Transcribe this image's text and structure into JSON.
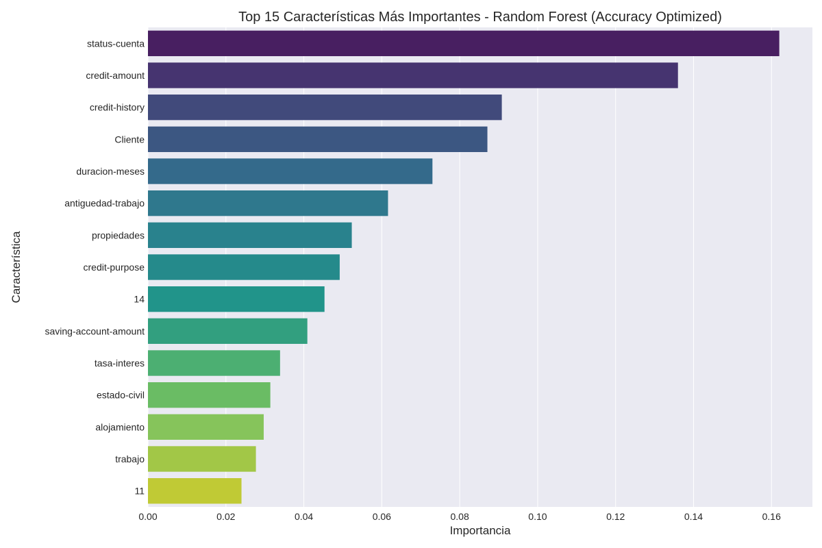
{
  "chart_data": {
    "type": "bar",
    "orientation": "horizontal",
    "title": "Top 15 Características Más Importantes - Random Forest (Accuracy Optimized)",
    "xlabel": "Importancia",
    "ylabel": "Característica",
    "categories": [
      "status-cuenta",
      "credit-amount",
      "credit-history",
      "Cliente",
      "duracion-meses",
      "antiguedad-trabajo",
      "propiedades",
      "credit-purpose",
      "14",
      "saving-account-amount",
      "tasa-interes",
      "estado-civil",
      "alojamiento",
      "trabajo",
      "11"
    ],
    "values": [
      0.162,
      0.136,
      0.0908,
      0.0871,
      0.073,
      0.0616,
      0.0523,
      0.0492,
      0.0453,
      0.0409,
      0.0339,
      0.0314,
      0.0297,
      0.0277,
      0.024
    ],
    "xlim": [
      0,
      0.1705
    ],
    "xticks": [
      "0.00",
      "0.02",
      "0.04",
      "0.06",
      "0.08",
      "0.10",
      "0.12",
      "0.14",
      "0.16"
    ],
    "grid": true,
    "legend": "none",
    "colormap": "viridis",
    "colors": [
      "#481f61",
      "#463470",
      "#414a7b",
      "#3c5782",
      "#346a8b",
      "#2f788d",
      "#29828d",
      "#258a8b",
      "#21948a",
      "#329f7f",
      "#4caf72",
      "#6abc64",
      "#86c45b",
      "#a2c747",
      "#c0ca35"
    ],
    "background_color": "#eaeaf2",
    "grid_color": "#ffffff"
  }
}
